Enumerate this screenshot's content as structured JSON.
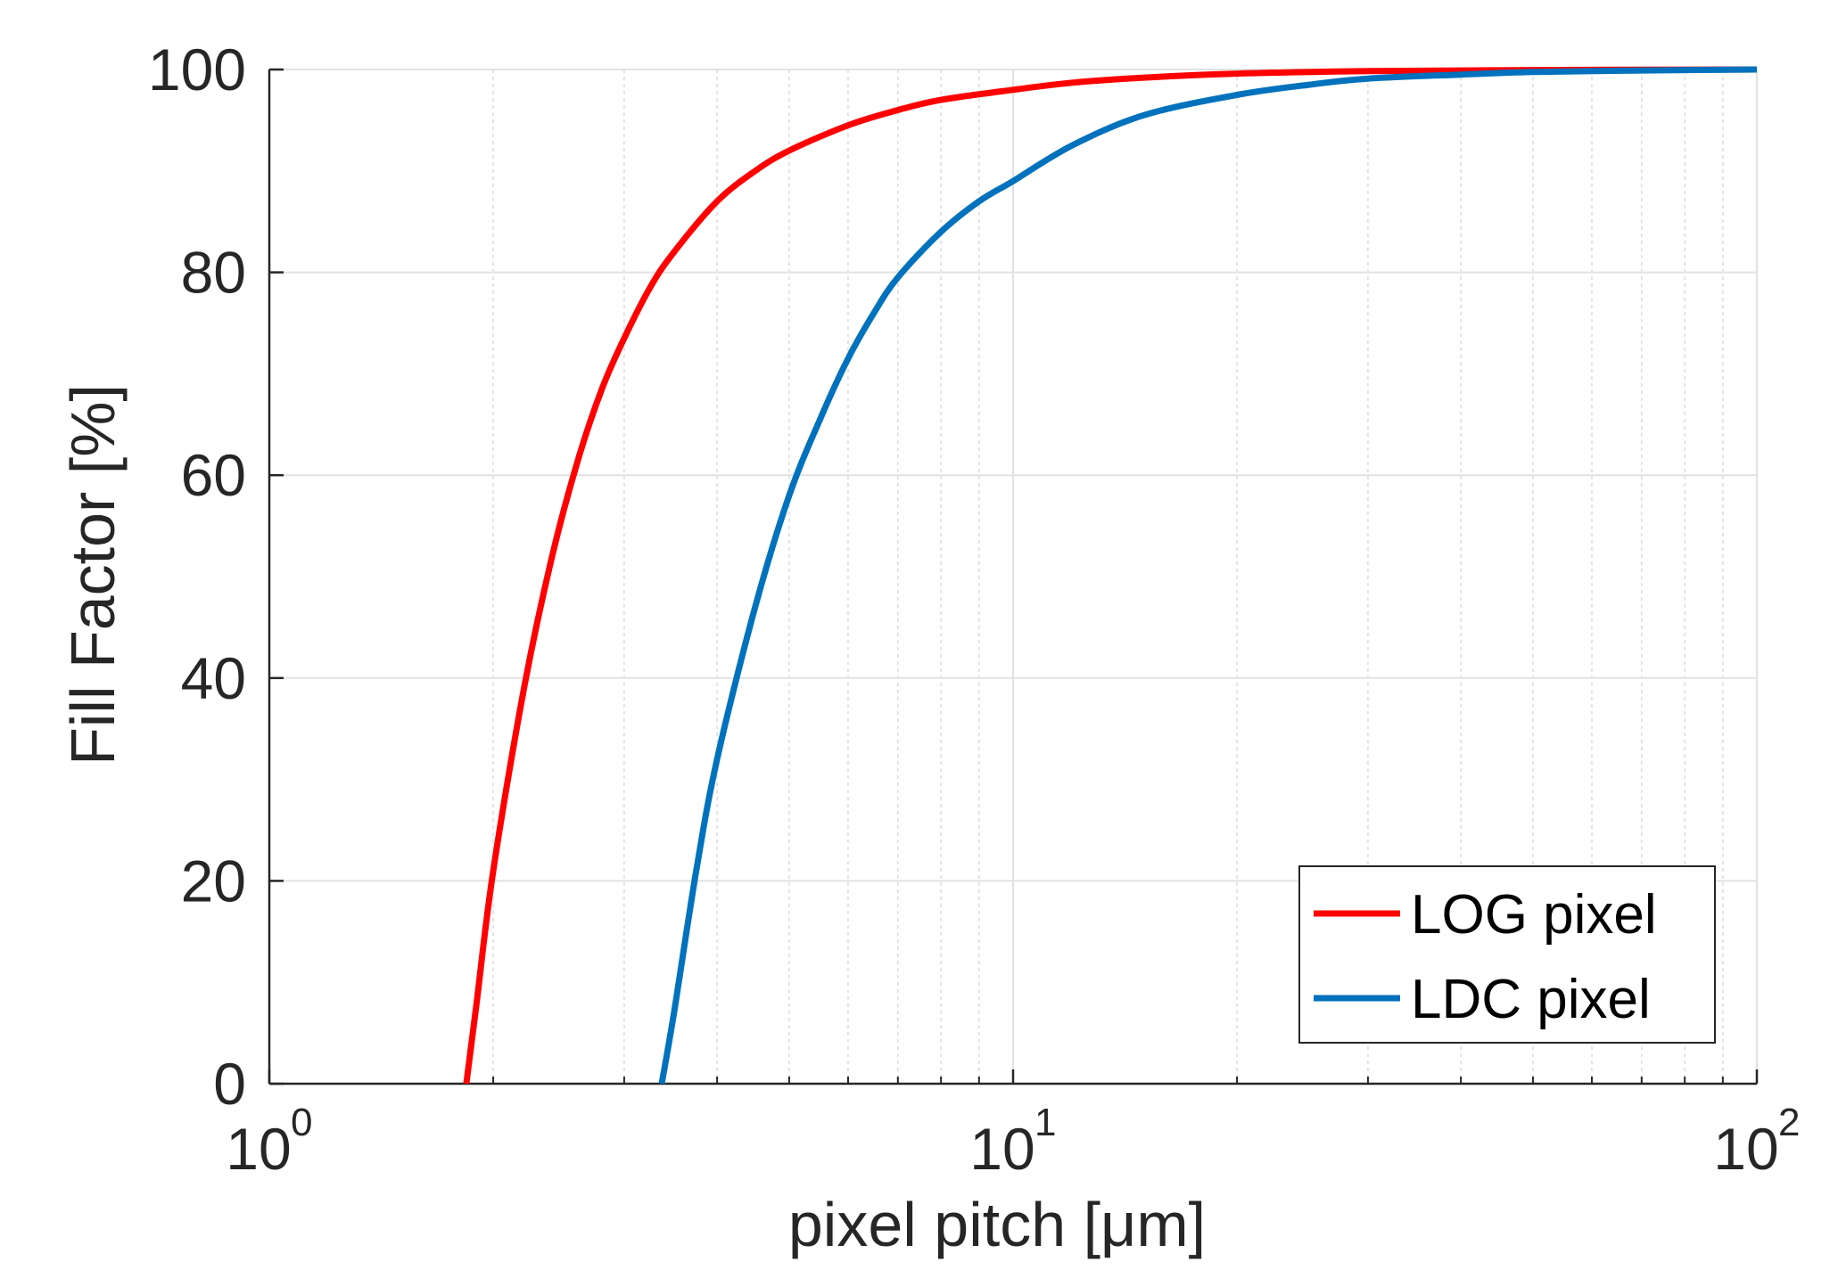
{
  "chart_data": {
    "type": "line",
    "xscale": "log",
    "title": "",
    "xlabel": "pixel pitch [μm]",
    "ylabel": "Fill Factor [%]",
    "xlim": [
      1,
      100
    ],
    "ylim": [
      0,
      100
    ],
    "grid": true,
    "legend_position": "bottom-right",
    "x_ticks": [
      {
        "value": 1,
        "base": "10",
        "exp": "0"
      },
      {
        "value": 10,
        "base": "10",
        "exp": "1"
      },
      {
        "value": 100,
        "base": "10",
        "exp": "2"
      }
    ],
    "y_ticks": [
      {
        "value": 0,
        "label": "0"
      },
      {
        "value": 20,
        "label": "20"
      },
      {
        "value": 40,
        "label": "40"
      },
      {
        "value": 60,
        "label": "60"
      },
      {
        "value": 80,
        "label": "80"
      },
      {
        "value": 100,
        "label": "100"
      }
    ],
    "series": [
      {
        "name": "LOG pixel",
        "color": "#ff0000",
        "x": [
          1.84,
          1.9,
          2.0,
          2.2,
          2.4,
          2.6,
          2.8,
          3.0,
          3.25,
          3.5,
          4.0,
          4.5,
          5.0,
          6.0,
          7.0,
          8.0,
          10.0,
          12.0,
          15.0,
          20.0,
          30.0,
          50.0,
          100.0
        ],
        "y": [
          0,
          8,
          21,
          39,
          52,
          61.5,
          68.5,
          73.5,
          78.5,
          82,
          87,
          90,
          92,
          94.5,
          96,
          97,
          98,
          98.7,
          99.2,
          99.6,
          99.85,
          99.95,
          100
        ]
      },
      {
        "name": "LDC pixel",
        "color": "#0072bd",
        "x": [
          3.37,
          3.5,
          3.75,
          4.0,
          4.5,
          5.0,
          5.5,
          6.0,
          6.5,
          7.0,
          8.0,
          9.0,
          10.0,
          12.0,
          15.0,
          20.0,
          25.0,
          30.0,
          40.0,
          50.0,
          70.0,
          100.0
        ],
        "y": [
          0,
          7,
          21,
          32,
          47,
          58,
          65.5,
          71.5,
          76,
          79.5,
          84,
          87,
          89,
          92.5,
          95.5,
          97.5,
          98.5,
          99.1,
          99.5,
          99.75,
          99.9,
          100
        ]
      }
    ]
  }
}
